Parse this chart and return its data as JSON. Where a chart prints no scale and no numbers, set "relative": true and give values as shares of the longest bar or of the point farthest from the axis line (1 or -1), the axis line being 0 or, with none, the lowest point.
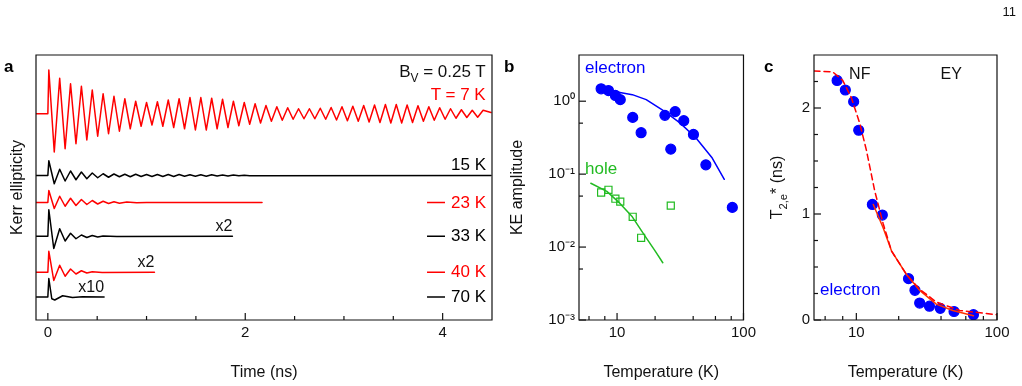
{
  "chart_data": [
    {
      "type": "line",
      "title": "a",
      "subtitle": "B$_{V}$ = 0.25 T",
      "xlabel": "Time (ns)",
      "ylabel": "Kerr ellipticity",
      "relative": true,
      "marker": "none",
      "legend": "right",
      "xlim": [
        -0.12,
        4.5
      ],
      "xticks": [
        0,
        {
          "value": 0.5,
          "label": null
        },
        {
          "value": 1,
          "label": null
        },
        {
          "value": 1.5,
          "label": null
        },
        2,
        {
          "value": 2.5,
          "label": null
        },
        {
          "value": 3,
          "label": null
        },
        {
          "value": 3.5,
          "label": null
        },
        4
      ],
      "series": [
        {
          "name": "T = 7 K",
          "color": "#ff0000",
          "x": [
            -0.12,
            0,
            0.01,
            0.065,
            0.12,
            0.175,
            0.23,
            0.285,
            0.34,
            0.395,
            0.45,
            0.505,
            0.56,
            0.615,
            0.67,
            0.725,
            0.78,
            0.835,
            0.89,
            0.945,
            1.0,
            1.055,
            1.11,
            1.165,
            1.22,
            1.275,
            1.33,
            1.385,
            1.44,
            1.495,
            1.55,
            1.605,
            1.66,
            1.715,
            1.77,
            1.825,
            1.88,
            1.935,
            1.99,
            2.045,
            2.1,
            2.155,
            2.21,
            2.265,
            2.32,
            2.375,
            2.43,
            2.485,
            2.54,
            2.595,
            2.65,
            2.705,
            2.76,
            2.815,
            2.87,
            2.925,
            2.98,
            3.035,
            3.09,
            3.145,
            3.2,
            3.255,
            3.31,
            3.365,
            3.42,
            3.475,
            3.53,
            3.585,
            3.64,
            3.695,
            3.75,
            3.805,
            3.86,
            3.915,
            3.97,
            4.025,
            4.08,
            4.135,
            4.19,
            4.245,
            4.3,
            4.355,
            4.41,
            4.49
          ],
          "values": [
            0.825,
            0.825,
            1.0,
            0.672,
            0.967,
            0.685,
            0.945,
            0.705,
            0.935,
            0.72,
            0.92,
            0.735,
            0.905,
            0.745,
            0.895,
            0.755,
            0.885,
            0.765,
            0.875,
            0.775,
            0.87,
            0.78,
            0.873,
            0.775,
            0.88,
            0.77,
            0.885,
            0.765,
            0.89,
            0.76,
            0.89,
            0.76,
            0.887,
            0.765,
            0.883,
            0.77,
            0.875,
            0.777,
            0.87,
            0.783,
            0.865,
            0.788,
            0.858,
            0.795,
            0.853,
            0.799,
            0.849,
            0.803,
            0.845,
            0.805,
            0.845,
            0.805,
            0.847,
            0.803,
            0.85,
            0.8,
            0.853,
            0.797,
            0.855,
            0.795,
            0.858,
            0.792,
            0.86,
            0.79,
            0.862,
            0.788,
            0.862,
            0.788,
            0.86,
            0.79,
            0.857,
            0.795,
            0.853,
            0.799,
            0.849,
            0.803,
            0.845,
            0.807,
            0.841,
            0.81,
            0.839,
            0.811,
            0.839,
            0.83
          ]
        },
        {
          "name": "15 K",
          "color": "#000000",
          "x": [
            -0.12,
            0,
            0.01,
            0.065,
            0.12,
            0.175,
            0.23,
            0.285,
            0.34,
            0.395,
            0.45,
            0.505,
            0.56,
            0.615,
            0.67,
            0.725,
            0.78,
            0.835,
            0.89,
            0.945,
            1.0,
            1.055,
            1.11,
            1.165,
            1.22,
            1.275,
            1.33,
            1.385,
            1.44,
            1.495,
            1.55,
            1.605,
            1.66,
            1.715,
            1.77,
            1.825,
            1.88,
            1.935,
            1.99,
            2.045,
            4.49
          ],
          "values": [
            0.578,
            0.578,
            0.637,
            0.545,
            0.603,
            0.556,
            0.596,
            0.561,
            0.592,
            0.565,
            0.588,
            0.569,
            0.585,
            0.571,
            0.584,
            0.573,
            0.583,
            0.573,
            0.583,
            0.574,
            0.582,
            0.574,
            0.582,
            0.574,
            0.582,
            0.574,
            0.582,
            0.575,
            0.581,
            0.575,
            0.581,
            0.575,
            0.581,
            0.576,
            0.58,
            0.576,
            0.58,
            0.577,
            0.579,
            0.577,
            0.578
          ]
        },
        {
          "name": "23 K",
          "color": "#ff0000",
          "x": [
            -0.12,
            0,
            0.01,
            0.065,
            0.12,
            0.175,
            0.23,
            0.285,
            0.34,
            0.395,
            0.45,
            0.505,
            0.56,
            0.615,
            0.67,
            0.725,
            0.8,
            0.9,
            1.0,
            2.17
          ],
          "values": [
            0.47,
            0.47,
            0.518,
            0.446,
            0.495,
            0.455,
            0.487,
            0.458,
            0.482,
            0.462,
            0.478,
            0.464,
            0.475,
            0.466,
            0.473,
            0.467,
            0.472,
            0.469,
            0.47,
            0.47
          ]
        },
        {
          "name": "33 K",
          "color": "#000000",
          "x": [
            -0.12,
            0,
            0.01,
            0.06,
            0.12,
            0.175,
            0.23,
            0.285,
            0.34,
            0.395,
            0.45,
            0.505,
            0.56,
            0.7,
            1.87
          ],
          "values": [
            0.335,
            0.335,
            0.441,
            0.286,
            0.365,
            0.316,
            0.347,
            0.325,
            0.34,
            0.33,
            0.338,
            0.332,
            0.336,
            0.334,
            0.335
          ]
        },
        {
          "name": "40 K",
          "color": "#ff0000",
          "x": [
            -0.12,
            0,
            0.01,
            0.06,
            0.12,
            0.175,
            0.23,
            0.285,
            0.34,
            0.395,
            0.45,
            0.55,
            1.08
          ],
          "values": [
            0.191,
            0.191,
            0.275,
            0.158,
            0.219,
            0.175,
            0.204,
            0.184,
            0.197,
            0.188,
            0.193,
            0.19,
            0.191
          ]
        },
        {
          "name": "70 K",
          "color": "#000000",
          "x": [
            -0.12,
            0,
            0.01,
            0.04,
            0.07,
            0.15,
            0.25,
            0.35,
            0.57
          ],
          "values": [
            0.092,
            0.092,
            0.166,
            0.085,
            0.08,
            0.097,
            0.09,
            0.093,
            0.092
          ]
        }
      ],
      "annotations": [
        "x2",
        "x2",
        "x10"
      ]
    },
    {
      "type": "scatter",
      "title": "b",
      "xlabel": "Temperature (K)",
      "ylabel": "KE amplitude",
      "log": "xy",
      "xlim": [
        5,
        100
      ],
      "ylim": [
        0.001,
        4.3
      ],
      "xticks": [
        {
          "value": 6,
          "label": null
        },
        {
          "value": 8,
          "label": null
        },
        10,
        {
          "value": 20,
          "label": null
        },
        {
          "value": 40,
          "label": null
        },
        {
          "value": 60,
          "label": null
        },
        {
          "value": 80,
          "label": null
        },
        100
      ],
      "yticks": [
        {
          "value": 0.001,
          "label": "10⁻³"
        },
        {
          "value": 0.005,
          "label": null
        },
        {
          "value": 0.01,
          "label": "10⁻²"
        },
        {
          "value": 0.05,
          "label": null
        },
        {
          "value": 0.1,
          "label": "10⁻¹"
        },
        {
          "value": 0.5,
          "label": null
        },
        {
          "value": 1,
          "label": "10⁰"
        }
      ],
      "series": [
        {
          "name": "electron",
          "color": "#0000ff",
          "marker": "circle",
          "x": [
            7.48,
            8.55,
            9.7,
            10.6,
            13.3,
            15.5,
            23.9,
            28.8,
            26.6,
            33.7,
            40.2,
            50.4,
            81.6
          ],
          "values": [
            1.48,
            1.4,
            1.2,
            1.05,
            0.6,
            0.37,
            0.64,
            0.72,
            0.22,
            0.54,
            0.35,
            0.134,
            0.035
          ]
        },
        {
          "type": "line",
          "color": "#0000ff",
          "x": [
            8.2,
            13.2,
            17.0,
            23.6,
            31.6,
            42.3,
            56.6,
            70.5
          ],
          "values": [
            1.42,
            1.23,
            1.05,
            0.73,
            0.5,
            0.31,
            0.166,
            0.085
          ]
        },
        {
          "name": "hole",
          "color": "#22bb22",
          "marker": "square",
          "x": [
            7.48,
            8.55,
            9.7,
            10.6,
            13.3,
            15.5,
            26.6
          ],
          "values": [
            0.056,
            0.061,
            0.046,
            0.042,
            0.026,
            0.0134,
            0.037
          ]
        },
        {
          "type": "line",
          "color": "#22bb22",
          "x": [
            6.2,
            8.3,
            10.5,
            13.2,
            16.7,
            19.8,
            23.0
          ],
          "values": [
            0.075,
            0.058,
            0.04,
            0.026,
            0.014,
            0.0091,
            0.0061
          ]
        }
      ]
    },
    {
      "type": "scatter",
      "title": "c",
      "xlabel": "Temperature (K)",
      "ylabel": "T$_{2,e}$* (ns)",
      "log": "x",
      "xlim": [
        5,
        100
      ],
      "ylim": [
        0,
        2.5
      ],
      "xticks": [
        {
          "value": 6,
          "label": null
        },
        {
          "value": 8,
          "label": null
        },
        10,
        {
          "value": 20,
          "label": null
        },
        {
          "value": 40,
          "label": null
        },
        {
          "value": 60,
          "label": null
        },
        {
          "value": 80,
          "label": null
        },
        100
      ],
      "yticks": [
        0,
        {
          "value": 0.25,
          "label": null
        },
        {
          "value": 0.5,
          "label": null
        },
        {
          "value": 0.75,
          "label": null
        },
        1,
        {
          "value": 1.25,
          "label": null
        },
        {
          "value": 1.5,
          "label": null
        },
        {
          "value": 1.75,
          "label": null
        },
        2,
        {
          "value": 2.25,
          "label": null
        }
      ],
      "series": [
        {
          "type": "line",
          "color": "#ff0000",
          "line_style": "dashed",
          "x": [
            5,
            6.8,
            8.0,
            9.2,
            10.6,
            11.8,
            13.5,
            15.5,
            17.8,
            22.7,
            28.2,
            37,
            54.3,
            100
          ],
          "values": [
            2.35,
            2.34,
            2.26,
            2.1,
            1.85,
            1.6,
            1.22,
            0.91,
            0.65,
            0.43,
            0.29,
            0.17,
            0.09,
            0.05
          ]
        },
        {
          "type": "line",
          "color": "#ff3300",
          "line_style": "solid",
          "x": [
            13.2,
            15.5,
            17.8,
            22.7,
            28.2,
            37,
            48.5,
            68
          ],
          "values": [
            1.09,
            0.87,
            0.65,
            0.43,
            0.28,
            0.15,
            0.09,
            0.04
          ]
        },
        {
          "name": "electron",
          "color": "#0000ff",
          "marker": "circle",
          "x": [
            7.3,
            8.35,
            9.57,
            10.4,
            13.0,
            15.3,
            23.5,
            26.1,
            28.2,
            33.1,
            39.5,
            49.5,
            68
          ],
          "values": [
            2.26,
            2.17,
            2.06,
            1.79,
            1.09,
            0.99,
            0.39,
            0.28,
            0.16,
            0.13,
            0.11,
            0.08,
            0.05
          ]
        }
      ],
      "annotations": [
        "11",
        "NF",
        "EY"
      ]
    }
  ]
}
